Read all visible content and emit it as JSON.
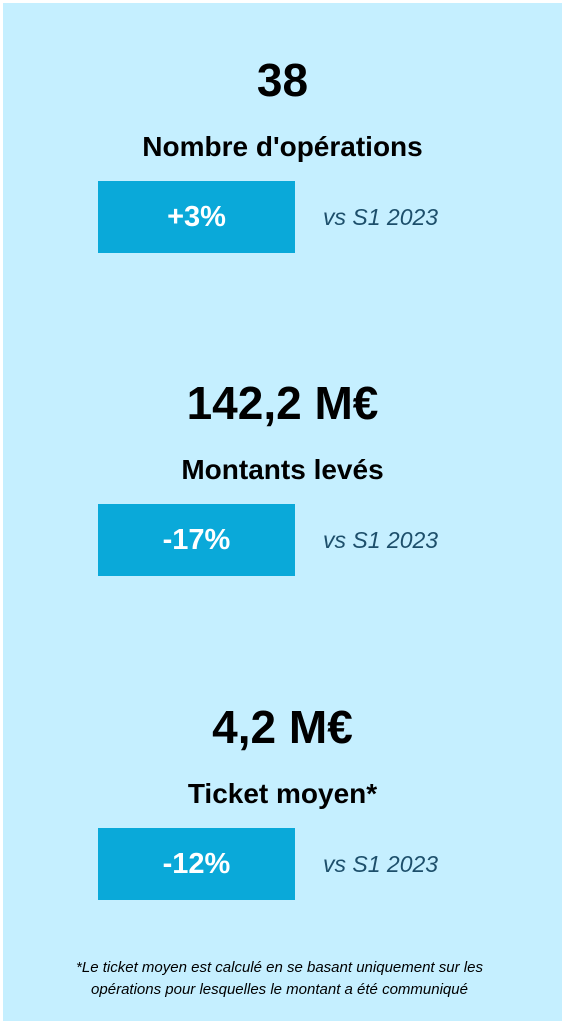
{
  "kpis": [
    {
      "value": "38",
      "label": "Nombre d'opérations",
      "change": "+3%",
      "comparison": "vs S1 2023"
    },
    {
      "value": "142,2 M€",
      "label": "Montants levés",
      "change": "-17%",
      "comparison": "vs S1 2023"
    },
    {
      "value": "4,2 M€",
      "label": "Ticket moyen*",
      "change": "-12%",
      "comparison": "vs S1 2023"
    }
  ],
  "footnote": [
    "*Le ticket moyen est calculé en se basant uniquement sur les",
    "opérations pour lesquelles le montant a été communiqué"
  ]
}
